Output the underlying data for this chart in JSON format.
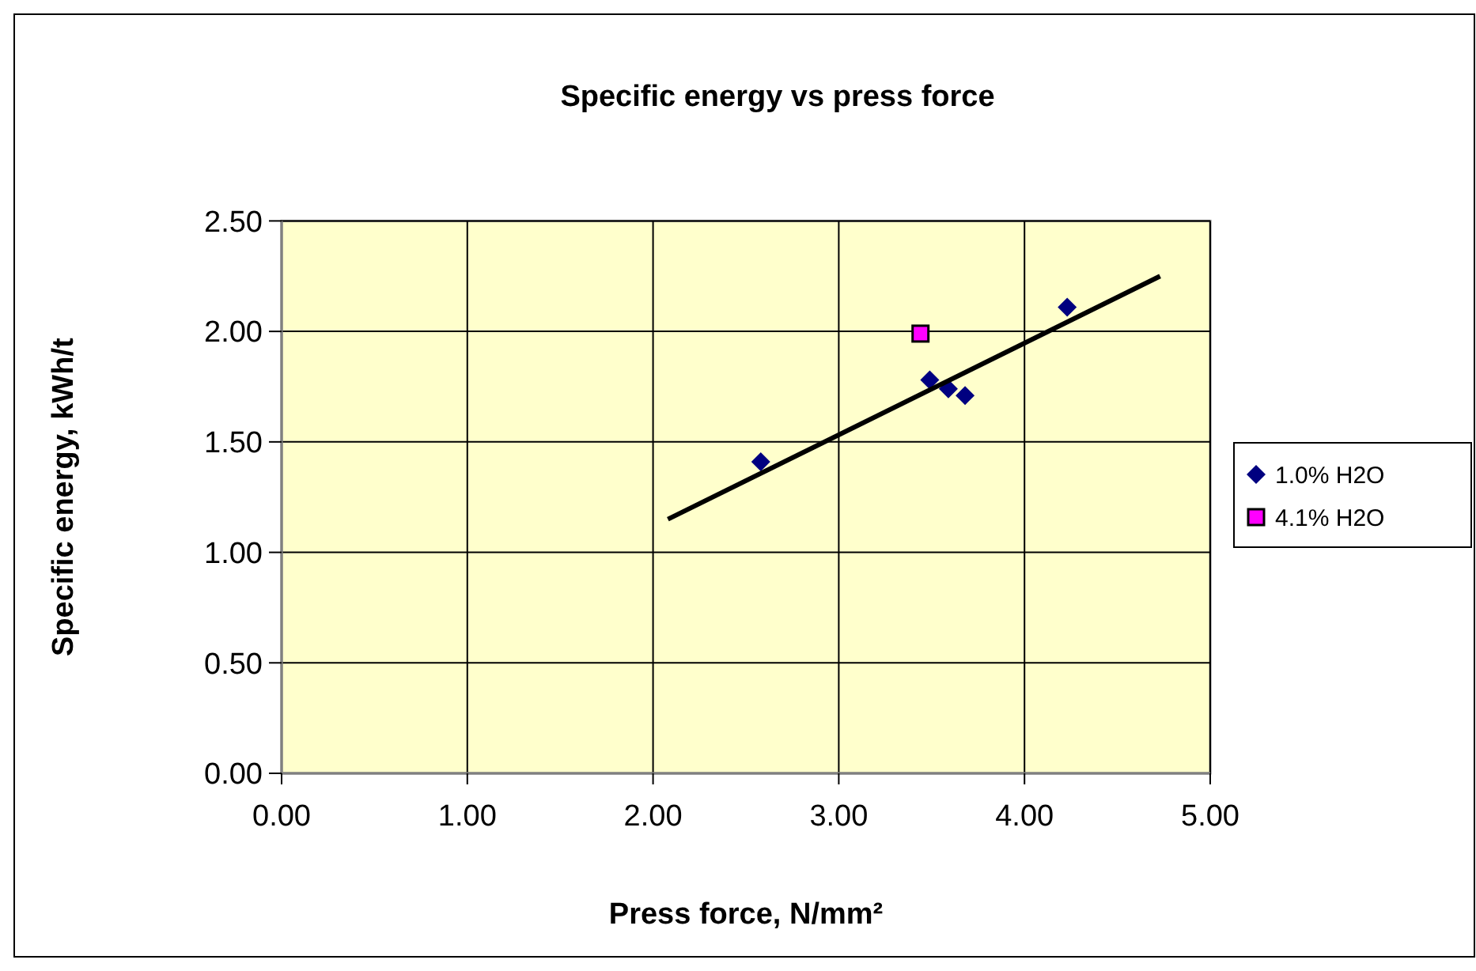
{
  "chart_data": {
    "type": "scatter",
    "title": "Specific energy vs press force",
    "xlabel": "Press force, N/mm²",
    "ylabel": "Specific energy, kWh/t",
    "series": [
      {
        "name": "1.0%  H2O",
        "color": "#000080",
        "marker": "diamond",
        "x": [
          2.58,
          3.49,
          3.59,
          3.68,
          4.23
        ],
        "values": [
          1.41,
          1.78,
          1.74,
          1.71,
          2.11
        ]
      },
      {
        "name": "4.1%  H2O",
        "color": "#ff00ff",
        "marker": "square",
        "x": [
          3.44
        ],
        "values": [
          1.99
        ]
      },
      {
        "type": "line",
        "color": "#000000",
        "marker": "none",
        "x": [
          2.08,
          4.73
        ],
        "values": [
          1.15,
          2.25
        ]
      }
    ],
    "xlim": [
      0,
      5
    ],
    "xticks": [
      {
        "value": 0,
        "label": "0.00"
      },
      {
        "value": 1,
        "label": "1.00"
      },
      {
        "value": 2,
        "label": "2.00"
      },
      {
        "value": 3,
        "label": "3.00"
      },
      {
        "value": 4,
        "label": "4.00"
      },
      {
        "value": 5,
        "label": "5.00"
      }
    ],
    "ylim": [
      0,
      2.5
    ],
    "yticks": [
      {
        "value": 0,
        "label": "0.00"
      },
      {
        "value": 0.5,
        "label": "0.50"
      },
      {
        "value": 1,
        "label": "1.00"
      },
      {
        "value": 1.5,
        "label": "1.50"
      },
      {
        "value": 2,
        "label": "2.00"
      },
      {
        "value": 2.5,
        "label": "2.50"
      }
    ],
    "grid": true,
    "legend": "right"
  }
}
